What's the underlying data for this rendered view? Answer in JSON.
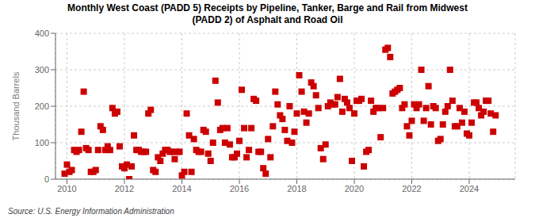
{
  "chart_data": {
    "type": "scatter",
    "title": "Monthly West Coast (PADD 5) Receipts by Pipeline, Tanker, Barge and Rail from Midwest\n(PADD 2) of Asphalt and Road Oil",
    "ylabel": "Thousand Barrels",
    "annotations": [
      "Source: U.S. Energy Information Administration"
    ],
    "color": "#cc0000",
    "marker": "square",
    "grid": true,
    "xlim": [
      2009.6,
      2025.6
    ],
    "xticks": [
      2010,
      2012,
      2014,
      2016,
      2018,
      2020,
      2022,
      2024
    ],
    "ylim": [
      0,
      400
    ],
    "yticks": [
      0,
      100,
      200,
      300,
      400
    ],
    "x": [
      2009.917,
      2010.0,
      2010.083,
      2010.167,
      2010.25,
      2010.333,
      2010.417,
      2010.5,
      2010.583,
      2010.667,
      2010.75,
      2010.833,
      2010.917,
      2011.0,
      2011.083,
      2011.167,
      2011.25,
      2011.333,
      2011.417,
      2011.5,
      2011.583,
      2011.667,
      2011.75,
      2011.833,
      2011.917,
      2012.0,
      2012.083,
      2012.167,
      2012.25,
      2012.333,
      2012.417,
      2012.5,
      2012.583,
      2012.667,
      2012.75,
      2012.833,
      2012.917,
      2013.0,
      2013.083,
      2013.167,
      2013.25,
      2013.333,
      2013.417,
      2013.5,
      2013.583,
      2013.667,
      2013.75,
      2013.833,
      2013.917,
      2014.0,
      2014.083,
      2014.167,
      2014.25,
      2014.333,
      2014.417,
      2014.5,
      2014.583,
      2014.667,
      2014.75,
      2014.833,
      2014.917,
      2015.0,
      2015.083,
      2015.167,
      2015.25,
      2015.333,
      2015.417,
      2015.5,
      2015.583,
      2015.667,
      2015.75,
      2015.833,
      2015.917,
      2016.0,
      2016.083,
      2016.167,
      2016.25,
      2016.333,
      2016.417,
      2016.5,
      2016.583,
      2016.667,
      2016.75,
      2016.833,
      2016.917,
      2017.0,
      2017.083,
      2017.167,
      2017.25,
      2017.333,
      2017.417,
      2017.5,
      2017.583,
      2017.667,
      2017.75,
      2017.833,
      2017.917,
      2018.0,
      2018.083,
      2018.167,
      2018.25,
      2018.333,
      2018.417,
      2018.5,
      2018.583,
      2018.667,
      2018.75,
      2018.833,
      2018.917,
      2019.0,
      2019.083,
      2019.167,
      2019.25,
      2019.333,
      2019.417,
      2019.5,
      2019.583,
      2019.667,
      2019.75,
      2019.833,
      2019.917,
      2020.0,
      2020.083,
      2020.167,
      2020.25,
      2020.333,
      2020.417,
      2020.5,
      2020.583,
      2020.667,
      2020.75,
      2020.833,
      2020.917,
      2021.0,
      2021.083,
      2021.167,
      2021.25,
      2021.333,
      2021.417,
      2021.5,
      2021.583,
      2021.667,
      2021.75,
      2021.833,
      2021.917,
      2022.0,
      2022.083,
      2022.167,
      2022.25,
      2022.333,
      2022.417,
      2022.5,
      2022.583,
      2022.667,
      2022.75,
      2022.833,
      2022.917,
      2023.0,
      2023.083,
      2023.167,
      2023.25,
      2023.333,
      2023.417,
      2023.5,
      2023.583,
      2023.667,
      2023.75,
      2023.833,
      2023.917,
      2024.0,
      2024.083,
      2024.167,
      2024.25,
      2024.333,
      2024.417,
      2024.5,
      2024.583,
      2024.667,
      2024.75,
      2024.833,
      2024.917
    ],
    "values": [
      15,
      40,
      20,
      25,
      80,
      75,
      80,
      130,
      240,
      85,
      80,
      20,
      20,
      25,
      80,
      145,
      135,
      80,
      90,
      80,
      195,
      180,
      185,
      90,
      35,
      30,
      40,
      0,
      35,
      120,
      80,
      80,
      75,
      75,
      75,
      180,
      190,
      25,
      20,
      60,
      50,
      70,
      80,
      80,
      75,
      75,
      55,
      75,
      75,
      10,
      20,
      180,
      120,
      20,
      110,
      80,
      75,
      75,
      135,
      130,
      70,
      50,
      100,
      270,
      210,
      135,
      140,
      100,
      140,
      95,
      60,
      60,
      70,
      105,
      245,
      140,
      60,
      80,
      140,
      220,
      215,
      75,
      75,
      30,
      15,
      110,
      60,
      145,
      240,
      205,
      175,
      165,
      135,
      105,
      200,
      100,
      130,
      180,
      285,
      240,
      185,
      155,
      180,
      265,
      255,
      230,
      195,
      85,
      55,
      95,
      200,
      210,
      205,
      205,
      225,
      275,
      185,
      220,
      210,
      195,
      50,
      180,
      215,
      215,
      220,
      35,
      75,
      80,
      215,
      185,
      195,
      195,
      115,
      195,
      355,
      360,
      335,
      235,
      240,
      245,
      250,
      195,
      205,
      145,
      120,
      160,
      205,
      195,
      205,
      300,
      160,
      195,
      255,
      150,
      200,
      195,
      105,
      110,
      150,
      185,
      200,
      300,
      215,
      145,
      145,
      195,
      155,
      185,
      125,
      120,
      155,
      210,
      210,
      195,
      175,
      185,
      215,
      215,
      180,
      130,
      175
    ]
  }
}
